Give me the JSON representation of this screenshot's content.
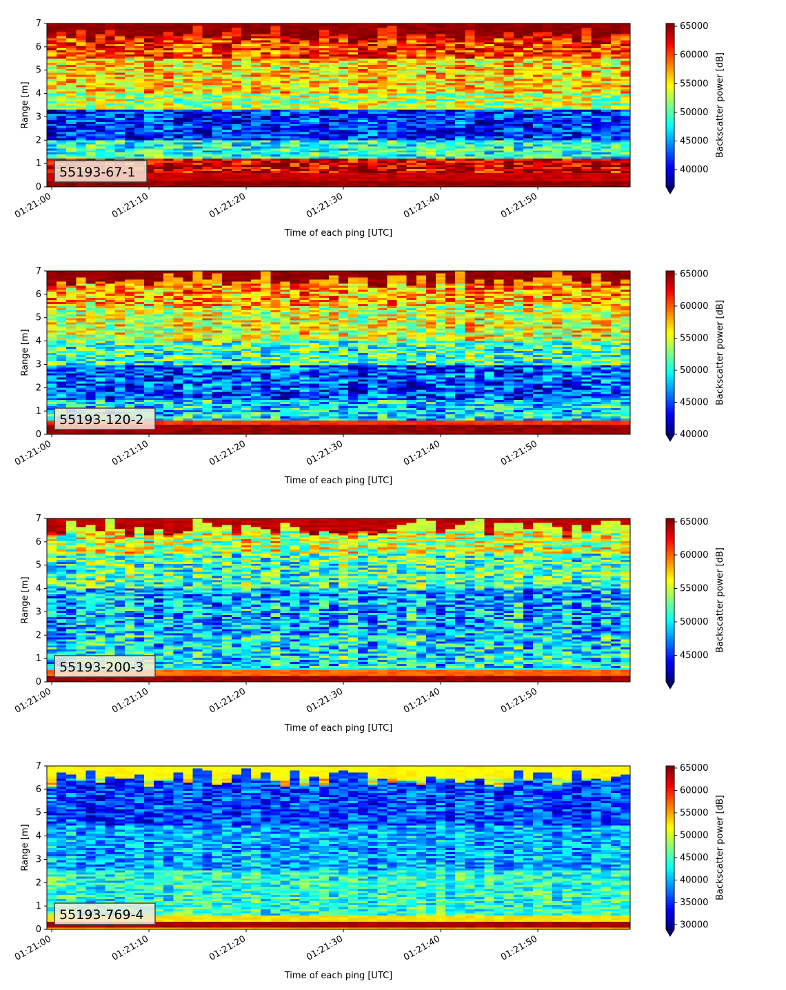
{
  "chart_data": [
    {
      "type": "heatmap",
      "label": "55193-67-1",
      "xlabel": "Time of each ping [UTC]",
      "ylabel": "Range [m]",
      "x_ticks": [
        "01:21:00",
        "01:21:10",
        "01:21:20",
        "01:21:30",
        "01:21:40",
        "01:21:50"
      ],
      "y_ticks": [
        "0",
        "1",
        "2",
        "3",
        "4",
        "5",
        "6",
        "7"
      ],
      "xlim_seconds": [
        -0.5,
        59.5
      ],
      "ylim": [
        0,
        7
      ],
      "colorbar": {
        "label": "Backscatter power [dB]",
        "ticks": [
          "40000",
          "45000",
          "50000",
          "55000",
          "60000",
          "65000"
        ],
        "vmin": 37000,
        "vmax": 65500
      },
      "profile": [
        {
          "range": [
            0.0,
            0.25
          ],
          "value": 65000
        },
        {
          "range": [
            0.25,
            1.2
          ],
          "value": 63500
        },
        {
          "range": [
            1.2,
            2.0
          ],
          "value": 49000
        },
        {
          "range": [
            2.0,
            3.3
          ],
          "value": 42000
        },
        {
          "range": [
            3.3,
            4.0
          ],
          "value": 53000
        },
        {
          "range": [
            4.0,
            5.5
          ],
          "value": 56000
        },
        {
          "range": [
            5.5,
            6.5
          ],
          "value": 60500
        },
        {
          "range": [
            6.5,
            7.0
          ],
          "value": 65000
        }
      ]
    },
    {
      "type": "heatmap",
      "label": "55193-120-2",
      "xlabel": "Time of each ping [UTC]",
      "ylabel": "Range [m]",
      "x_ticks": [
        "01:21:00",
        "01:21:10",
        "01:21:20",
        "01:21:30",
        "01:21:40",
        "01:21:50"
      ],
      "y_ticks": [
        "0",
        "1",
        "2",
        "3",
        "4",
        "5",
        "6",
        "7"
      ],
      "xlim_seconds": [
        -0.5,
        59.5
      ],
      "ylim": [
        0,
        7
      ],
      "colorbar": {
        "label": "Backscatter power [dB]",
        "ticks": [
          "40000",
          "45000",
          "50000",
          "55000",
          "60000",
          "65000"
        ],
        "vmin": 40000,
        "vmax": 65500
      },
      "profile": [
        {
          "range": [
            0.0,
            0.4
          ],
          "value": 65000
        },
        {
          "range": [
            0.4,
            0.6
          ],
          "value": 61000
        },
        {
          "range": [
            0.6,
            1.5
          ],
          "value": 49000
        },
        {
          "range": [
            1.5,
            3.0
          ],
          "value": 45000
        },
        {
          "range": [
            3.0,
            4.0
          ],
          "value": 51000
        },
        {
          "range": [
            4.0,
            5.5
          ],
          "value": 55000
        },
        {
          "range": [
            5.5,
            6.6
          ],
          "value": 58000
        },
        {
          "range": [
            6.6,
            7.0
          ],
          "value": 65000
        }
      ]
    },
    {
      "type": "heatmap",
      "label": "55193-200-3",
      "xlabel": "Time of each ping [UTC]",
      "ylabel": "Range [m]",
      "x_ticks": [
        "01:21:00",
        "01:21:10",
        "01:21:20",
        "01:21:30",
        "01:21:40",
        "01:21:50"
      ],
      "y_ticks": [
        "0",
        "1",
        "2",
        "3",
        "4",
        "5",
        "6",
        "7"
      ],
      "xlim_seconds": [
        -0.5,
        59.5
      ],
      "ylim": [
        0,
        7
      ],
      "colorbar": {
        "label": "Backscatter power [dB]",
        "ticks": [
          "45000",
          "50000",
          "55000",
          "60000",
          "65000"
        ],
        "vmin": 41000,
        "vmax": 65500
      },
      "profile": [
        {
          "range": [
            0.0,
            0.3
          ],
          "value": 65000
        },
        {
          "range": [
            0.3,
            0.5
          ],
          "value": 60000
        },
        {
          "range": [
            0.5,
            2.0
          ],
          "value": 50000
        },
        {
          "range": [
            2.0,
            4.0
          ],
          "value": 48500
        },
        {
          "range": [
            4.0,
            5.5
          ],
          "value": 52000
        },
        {
          "range": [
            5.5,
            6.6
          ],
          "value": 55000
        },
        {
          "range": [
            6.6,
            7.0
          ],
          "value": 64000
        }
      ]
    },
    {
      "type": "heatmap",
      "label": "55193-769-4",
      "xlabel": "Time of each ping [UTC]",
      "ylabel": "Range [m]",
      "x_ticks": [
        "01:21:00",
        "01:21:10",
        "01:21:20",
        "01:21:30",
        "01:21:40",
        "01:21:50"
      ],
      "y_ticks": [
        "0",
        "1",
        "2",
        "3",
        "4",
        "5",
        "6",
        "7"
      ],
      "xlim_seconds": [
        -0.5,
        59.5
      ],
      "ylim": [
        0,
        7
      ],
      "colorbar": {
        "label": "Backscatter power [dB]",
        "ticks": [
          "30000",
          "35000",
          "40000",
          "45000",
          "50000",
          "55000",
          "60000",
          "65000"
        ],
        "vmin": 29000,
        "vmax": 65500
      },
      "profile": [
        {
          "range": [
            0.0,
            0.1
          ],
          "value": 55000
        },
        {
          "range": [
            0.1,
            0.35
          ],
          "value": 64000
        },
        {
          "range": [
            0.35,
            0.6
          ],
          "value": 53000
        },
        {
          "range": [
            0.6,
            2.5
          ],
          "value": 44000
        },
        {
          "range": [
            2.5,
            4.5
          ],
          "value": 40000
        },
        {
          "range": [
            4.5,
            6.5
          ],
          "value": 36000
        },
        {
          "range": [
            6.5,
            7.0
          ],
          "value": 52000
        }
      ]
    }
  ]
}
